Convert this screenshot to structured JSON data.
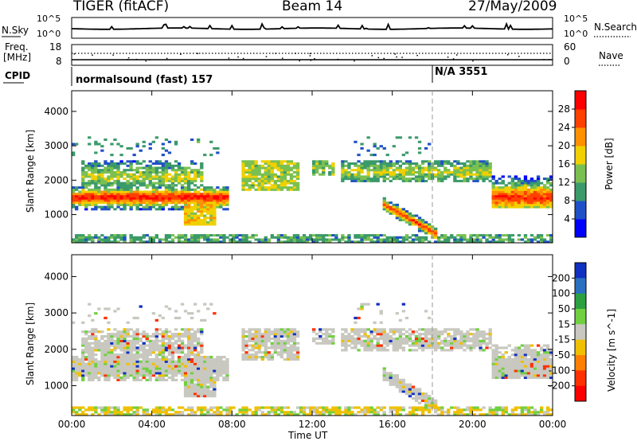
{
  "header": {
    "title": "TIGER (fitACF)",
    "beam": "Beam 14",
    "date": "27/May/2009"
  },
  "panels": {
    "noise": {
      "left_label": "N.Sky",
      "left_ticks": [
        "10^5",
        "10^0"
      ],
      "right_label": "N.Search",
      "right_ticks": [
        "10^5",
        "10^0"
      ]
    },
    "freq": {
      "left_label_1": "Freq.",
      "left_label_2": "[MHz]",
      "left_ticks": [
        "18",
        "8"
      ],
      "right_label": "Nave",
      "right_ticks": [
        "60",
        "0"
      ]
    },
    "cpid": {
      "label": "CPID",
      "segments": [
        {
          "text": "normalsound (fast) 157",
          "start": "00:00"
        },
        {
          "text": "N/A 3551",
          "start": "18:00"
        }
      ]
    }
  },
  "chart_data": [
    {
      "type": "heatmap",
      "title": "",
      "xlabel": "Time UT",
      "ylabel": "Slant Range [km]",
      "x_ticks": [
        "00:00",
        "04:00",
        "08:00",
        "12:00",
        "16:00",
        "20:00",
        "00:00"
      ],
      "xlim_hours": [
        0,
        24
      ],
      "y_ticks": [
        1000,
        2000,
        3000,
        4000
      ],
      "ylim": [
        180,
        4600
      ],
      "colorbar": {
        "label": "Power [dB]",
        "ticks": [
          4,
          8,
          12,
          16,
          20,
          24,
          28
        ],
        "range": [
          0,
          32
        ],
        "colors": [
          "#0000ff",
          "#2050c8",
          "#3a9a6a",
          "#7ac050",
          "#f0d000",
          "#ff9000",
          "#ff4000",
          "#ff0000"
        ]
      },
      "features": [
        {
          "name": "main echo band",
          "t": [
            0,
            7.8
          ],
          "range_km": [
            1300,
            1700
          ],
          "value": 26
        },
        {
          "name": "upper band",
          "t": [
            0.5,
            6.5
          ],
          "range_km": [
            1800,
            2500
          ],
          "value": 16
        },
        {
          "name": "afternoon band",
          "t": [
            13.5,
            21
          ],
          "range_km": [
            2000,
            2500
          ],
          "value": 18
        },
        {
          "name": "diagonal feature",
          "t": [
            15.6,
            18.0
          ],
          "range_km": [
            400,
            1300
          ],
          "value": 24
        },
        {
          "name": "evening band",
          "t": [
            21,
            24
          ],
          "range_km": [
            1300,
            1900
          ],
          "value": 26
        }
      ]
    },
    {
      "type": "heatmap",
      "title": "",
      "xlabel": "Time UT",
      "ylabel": "Slant Range [km]",
      "x_ticks": [
        "00:00",
        "04:00",
        "08:00",
        "12:00",
        "16:00",
        "20:00",
        "00:00"
      ],
      "xlim_hours": [
        0,
        24
      ],
      "y_ticks": [
        1000,
        2000,
        3000,
        4000
      ],
      "ylim": [
        180,
        4600
      ],
      "colorbar": {
        "label": "Velocity [m s^-1]",
        "ticks": [
          200,
          100,
          50,
          15,
          -15,
          -50,
          -100,
          -200
        ],
        "colors": [
          "#1030c0",
          "#2a70c0",
          "#2aa040",
          "#70d040",
          "#c8c8c0",
          "#f0c000",
          "#ff8000",
          "#ff3000",
          "#ff0000"
        ]
      },
      "features": [
        {
          "name": "ground scatter band",
          "t": [
            0,
            24
          ],
          "range_km": [
            1300,
            2500
          ],
          "value": 0
        },
        {
          "name": "near-range flow",
          "t": [
            0,
            24
          ],
          "range_km": [
            200,
            500
          ],
          "value": -60
        }
      ]
    }
  ]
}
